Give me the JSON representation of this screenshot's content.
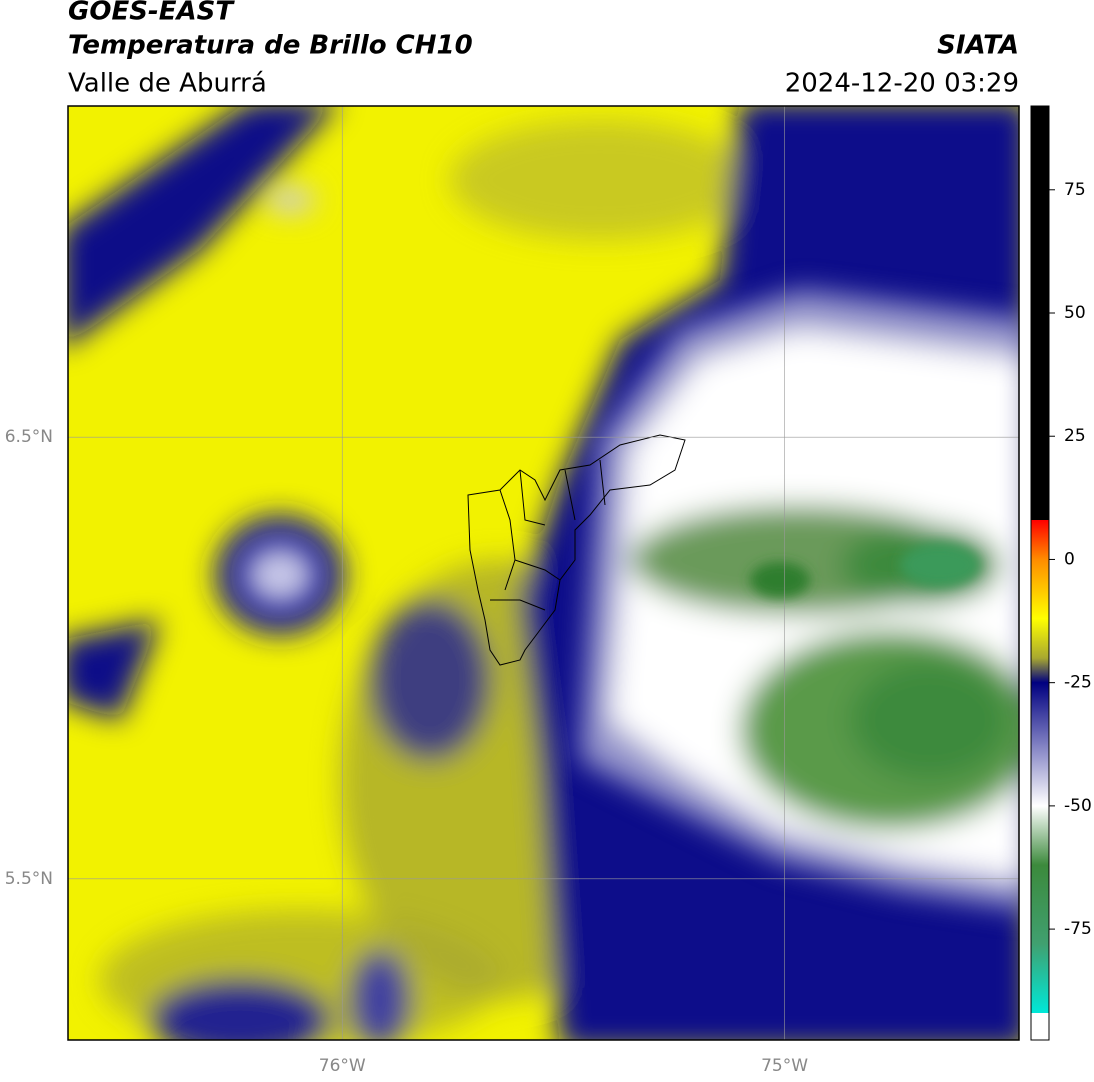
{
  "header": {
    "title": "GOES-EAST",
    "subtitle": "Temperatura de Brillo CH10",
    "region": "Valle de Aburrá",
    "source": "SIATA",
    "datetime": "2024-12-20 03:29"
  },
  "map": {
    "lon_range": [
      -76.62,
      -74.47
    ],
    "lat_range": [
      5.135,
      7.25
    ],
    "lon_ticks": [
      {
        "value": -76,
        "label": "76°W"
      },
      {
        "value": -75,
        "label": "75°W"
      }
    ],
    "lat_ticks": [
      {
        "value": 6.5,
        "label": "6.5°N"
      },
      {
        "value": 5.5,
        "label": "5.5°N"
      }
    ],
    "grid": true
  },
  "colorbar": {
    "range": [
      -97.5,
      92
    ],
    "ticks": [
      75,
      50,
      25,
      0,
      -25,
      -50,
      -75
    ],
    "stops": [
      {
        "value": 92,
        "color": "#000000"
      },
      {
        "value": 8,
        "color": "#000000"
      },
      {
        "value": 8,
        "color": "#ff0000"
      },
      {
        "value": 0,
        "color": "#ff8c00"
      },
      {
        "value": -12,
        "color": "#ffff00"
      },
      {
        "value": -20,
        "color": "#a8a830"
      },
      {
        "value": -25,
        "color": "#000080"
      },
      {
        "value": -38,
        "color": "#8484c4"
      },
      {
        "value": -50,
        "color": "#ffffff"
      },
      {
        "value": -62,
        "color": "#3c8a3c"
      },
      {
        "value": -78,
        "color": "#40a070"
      },
      {
        "value": -92,
        "color": "#00e8d8"
      },
      {
        "value": -92,
        "color": "#ffffff"
      },
      {
        "value": -97.5,
        "color": "#ffffff"
      }
    ]
  }
}
